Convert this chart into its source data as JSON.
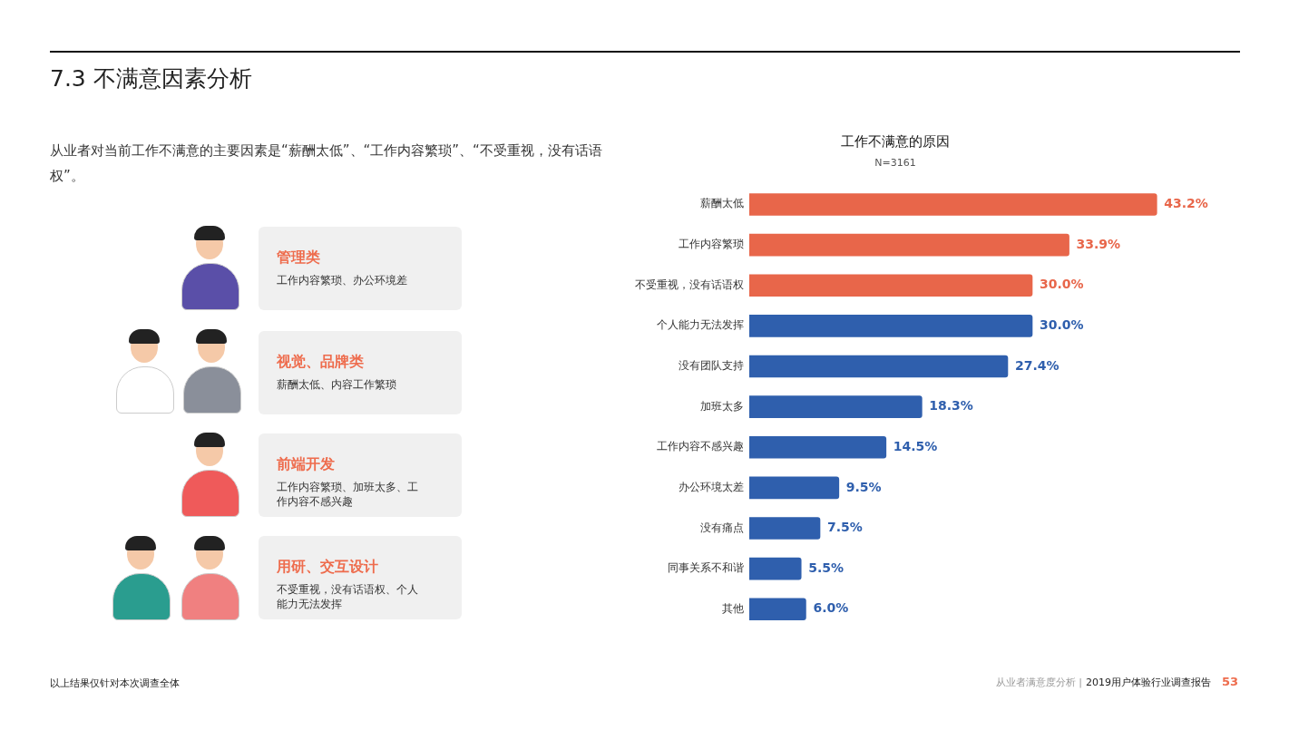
{
  "chart_data": {
    "type": "bar",
    "orientation": "horizontal",
    "title": "工作不满意的原因",
    "subtitle": "N=3161",
    "categories": [
      "薪酬太低",
      "工作内容繁琐",
      "不受重视，没有话语权",
      "个人能力无法发挥",
      "没有团队支持",
      "加班太多",
      "工作内容不感兴趣",
      "办公环境太差",
      "没有痛点",
      "同事关系不和谐",
      "其他"
    ],
    "values": [
      43.2,
      33.9,
      30.0,
      30.0,
      27.4,
      18.3,
      14.5,
      9.5,
      7.5,
      5.5,
      6.0
    ],
    "colors": [
      "#e8664a",
      "#e8664a",
      "#e8664a",
      "#2f5fad",
      "#2f5fad",
      "#2f5fad",
      "#2f5fad",
      "#2f5fad",
      "#2f5fad",
      "#2f5fad",
      "#2f5fad"
    ],
    "value_labels": [
      "43.2%",
      "33.9%",
      "30.0%",
      "30.0%",
      "27.4%",
      "18.3%",
      "14.5%",
      "9.5%",
      "7.5%",
      "5.5%",
      "6.0%"
    ],
    "tick_labels": "y",
    "grid": false,
    "legend": false,
    "annotations": [
      "7.3 不满意因素分析",
      "从业者对当前工作不满意的主要因素是“薪酬太低”、“工作内容繁琐”、“不受重视，没有话语权”。",
      "管理类",
      "工作内容繁琐、办公环境差",
      "视觉、品牌类",
      "薪酬太低、内容工作繁琐",
      "前端开发",
      "工作内容繁琐、加班太多、工作内容不感兴趣",
      "用研、交互设计",
      "不受重视，没有话语权、个人能力无法发挥",
      "以上结果仅针对本次调查全体",
      "从业者满意度分析 |",
      "2019用户体验行业调查报告",
      "53"
    ]
  }
}
